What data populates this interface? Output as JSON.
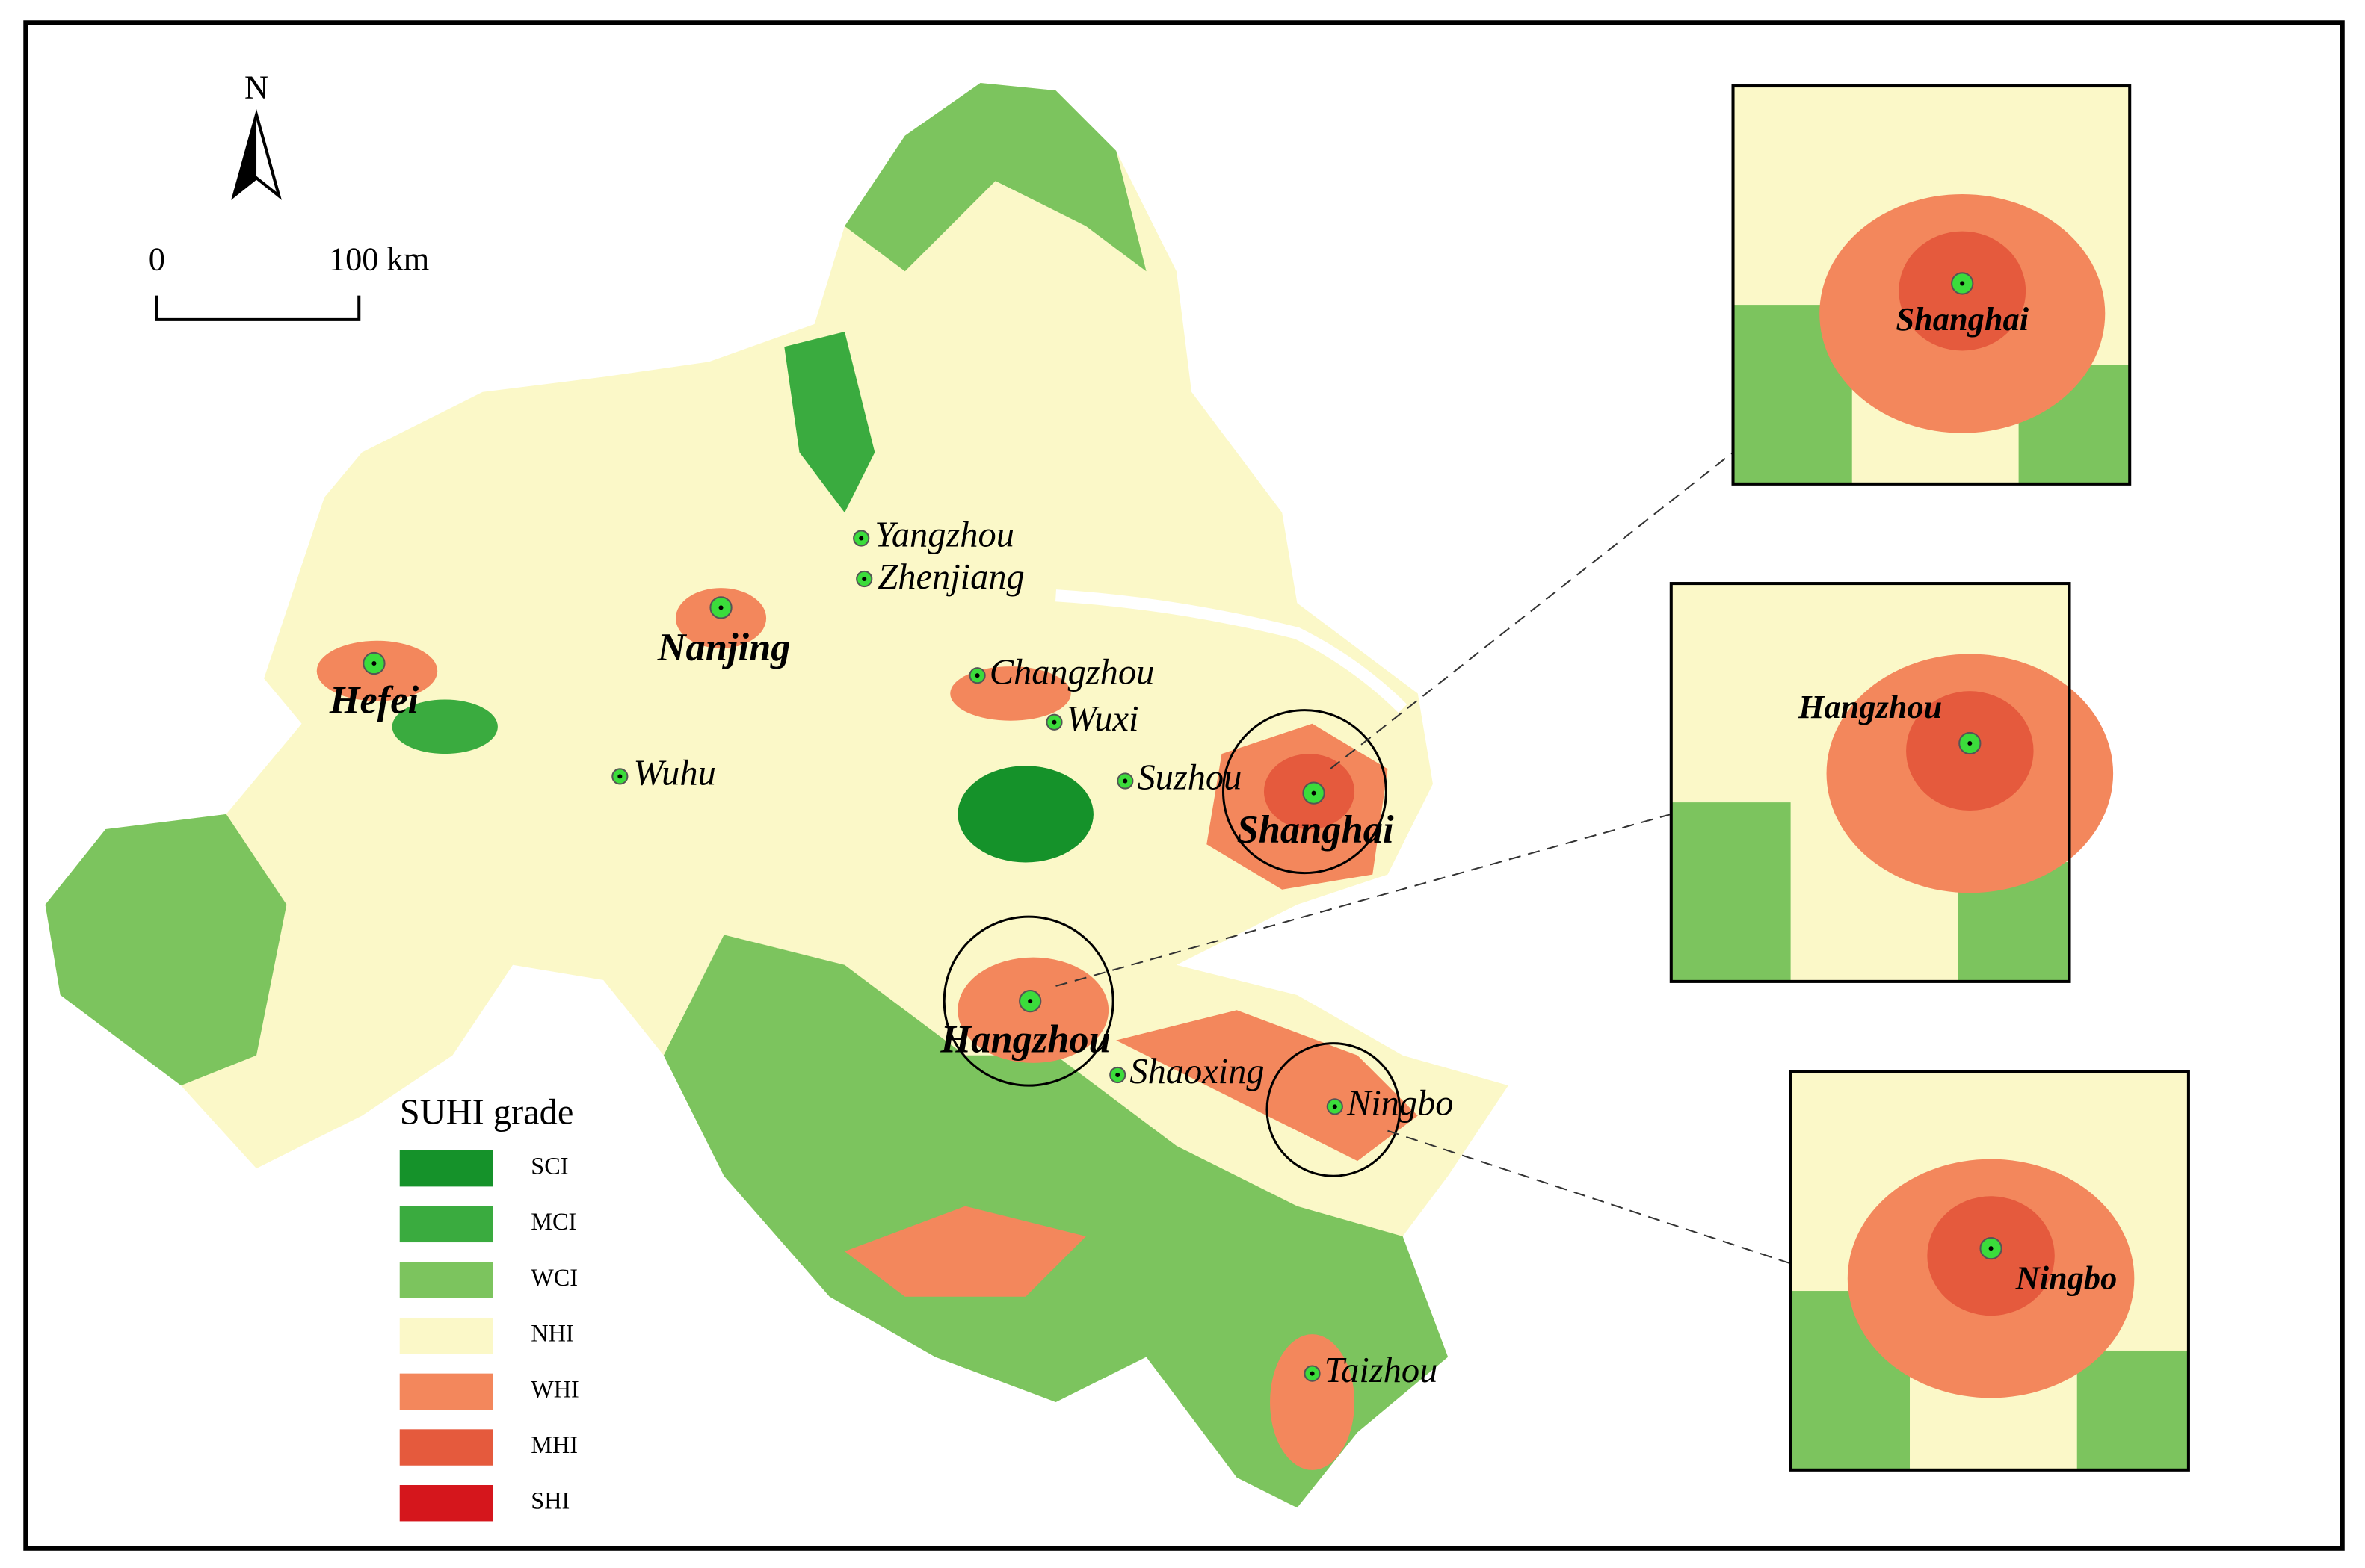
{
  "north": "N",
  "scale_bar": {
    "start": "0",
    "end": "100 km"
  },
  "legend": {
    "title": "SUHI grade",
    "items": [
      {
        "label": "SCI",
        "color": "#15922a"
      },
      {
        "label": "MCI",
        "color": "#3aab3f"
      },
      {
        "label": "WCI",
        "color": "#7cc45e"
      },
      {
        "label": "NHI",
        "color": "#fbf8c8"
      },
      {
        "label": "WHI",
        "color": "#f3875c"
      },
      {
        "label": "MHI",
        "color": "#e55a3d"
      },
      {
        "label": "SHI",
        "color": "#d5161c"
      }
    ]
  },
  "cities": [
    {
      "name": "Yangzhou",
      "bold": false
    },
    {
      "name": "Zhenjiang",
      "bold": false
    },
    {
      "name": "Nanjing",
      "bold": true
    },
    {
      "name": "Hefei",
      "bold": true
    },
    {
      "name": "Changzhou",
      "bold": false
    },
    {
      "name": "Wuxi",
      "bold": false
    },
    {
      "name": "Wuhu",
      "bold": false
    },
    {
      "name": "Suzhou",
      "bold": false
    },
    {
      "name": "Shanghai",
      "bold": true
    },
    {
      "name": "Hangzhou",
      "bold": true
    },
    {
      "name": "Shaoxing",
      "bold": false
    },
    {
      "name": "Ningbo",
      "bold": false
    },
    {
      "name": "Taizhou",
      "bold": false
    }
  ],
  "insets": [
    {
      "name": "Shanghai"
    },
    {
      "name": "Hangzhou"
    },
    {
      "name": "Ningbo"
    }
  ]
}
